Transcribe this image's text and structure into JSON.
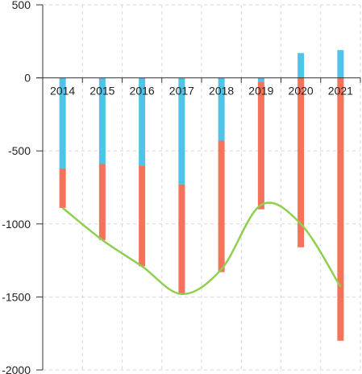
{
  "chart_data": {
    "type": "bar",
    "stacked": true,
    "categories": [
      "2014",
      "2015",
      "2016",
      "2017",
      "2018",
      "2019",
      "2020",
      "2021"
    ],
    "series": [
      {
        "kind": "bar",
        "color": "#4fc3e8",
        "values": [
          -620,
          -590,
          -600,
          -730,
          -430,
          -30,
          170,
          190
        ]
      },
      {
        "kind": "bar",
        "color": "#f4735a",
        "values": [
          -270,
          -520,
          -690,
          -750,
          -900,
          -870,
          -1160,
          -1800
        ]
      },
      {
        "kind": "line",
        "color": "#8fcf4f",
        "values": [
          -890,
          -1110,
          -1290,
          -1480,
          -1310,
          -870,
          -1000,
          -1430
        ]
      }
    ],
    "ylim": [
      -2000,
      500
    ],
    "yticks": [
      "500",
      "0",
      "-500",
      "-1000",
      "-1500",
      "-2000"
    ],
    "grid": true,
    "title": "",
    "xlabel": "",
    "ylabel": ""
  }
}
